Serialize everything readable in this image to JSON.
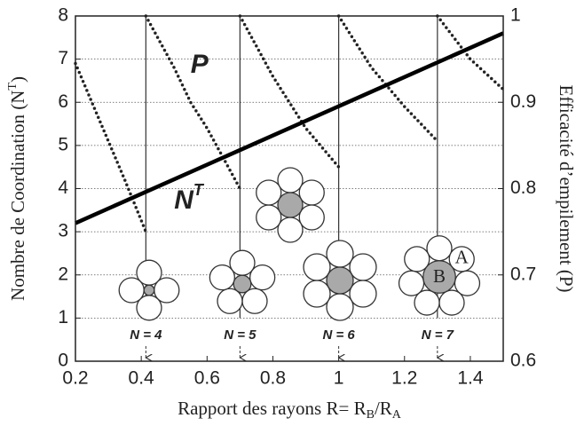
{
  "chart_data": {
    "type": "line",
    "x_label": [
      {
        "text": "Rapport des rayons R= R"
      },
      {
        "sub": "B"
      },
      {
        "text": "/R"
      },
      {
        "sub": "A"
      }
    ],
    "y_label": [
      {
        "text": "Nombre de Coordination (N"
      },
      {
        "sup": "T"
      },
      {
        "text": ")"
      }
    ],
    "y2_label": "Efficacité d’empilement (P)",
    "xlim": [
      0.2,
      1.5
    ],
    "xticks": [
      0.2,
      0.4,
      0.6,
      0.8,
      {
        "value": 1.0,
        "label": "1"
      },
      1.2,
      1.4
    ],
    "ylim": [
      0,
      8
    ],
    "yticks": [
      0,
      1,
      2,
      3,
      4,
      5,
      6,
      7,
      8
    ],
    "y2lim": [
      0.6,
      1.0
    ],
    "y2ticks": [
      0.6,
      0.7,
      0.8,
      0.9,
      {
        "value": 1.0,
        "label": "1"
      }
    ],
    "grid": true,
    "series": [
      {
        "name": "P",
        "axis": "y2",
        "color": "#222222",
        "style": "dotted",
        "x": [
          0.2,
          0.25,
          0.3,
          0.35,
          0.414,
          0.414,
          0.414,
          0.5,
          0.55,
          0.6,
          0.65,
          0.7,
          0.7,
          0.7,
          0.8,
          0.9,
          1.0,
          1.0,
          1.0,
          1.1,
          1.2,
          1.3,
          1.3,
          1.3,
          1.4,
          1.5
        ],
        "values": [
          0.945,
          0.9,
          0.855,
          0.81,
          0.75,
          null,
          1.0,
          0.94,
          0.9,
          0.87,
          0.835,
          0.8,
          null,
          1.0,
          0.93,
          0.87,
          0.825,
          null,
          1.0,
          0.94,
          0.895,
          0.855,
          null,
          1.0,
          0.95,
          0.915
        ]
      },
      {
        "name": "N",
        "name_superscript": "T",
        "axis": "y",
        "color": "#000000",
        "style": "solid",
        "x": [
          0.2,
          1.5
        ],
        "values": [
          3.2,
          7.6
        ]
      }
    ],
    "annotations": {
      "P": {
        "x": 0.55,
        "y": 6.85
      },
      "NT": {
        "x": 0.5,
        "y": 3.7
      }
    },
    "markers": [
      {
        "x": 0.414,
        "label": "N = 4"
      },
      {
        "x": 0.7,
        "label": "N = 5"
      },
      {
        "x": 1.0,
        "label": "N = 6"
      },
      {
        "x": 1.3,
        "label": "N = 7"
      }
    ],
    "atom_labels": [
      "A",
      "B"
    ]
  }
}
